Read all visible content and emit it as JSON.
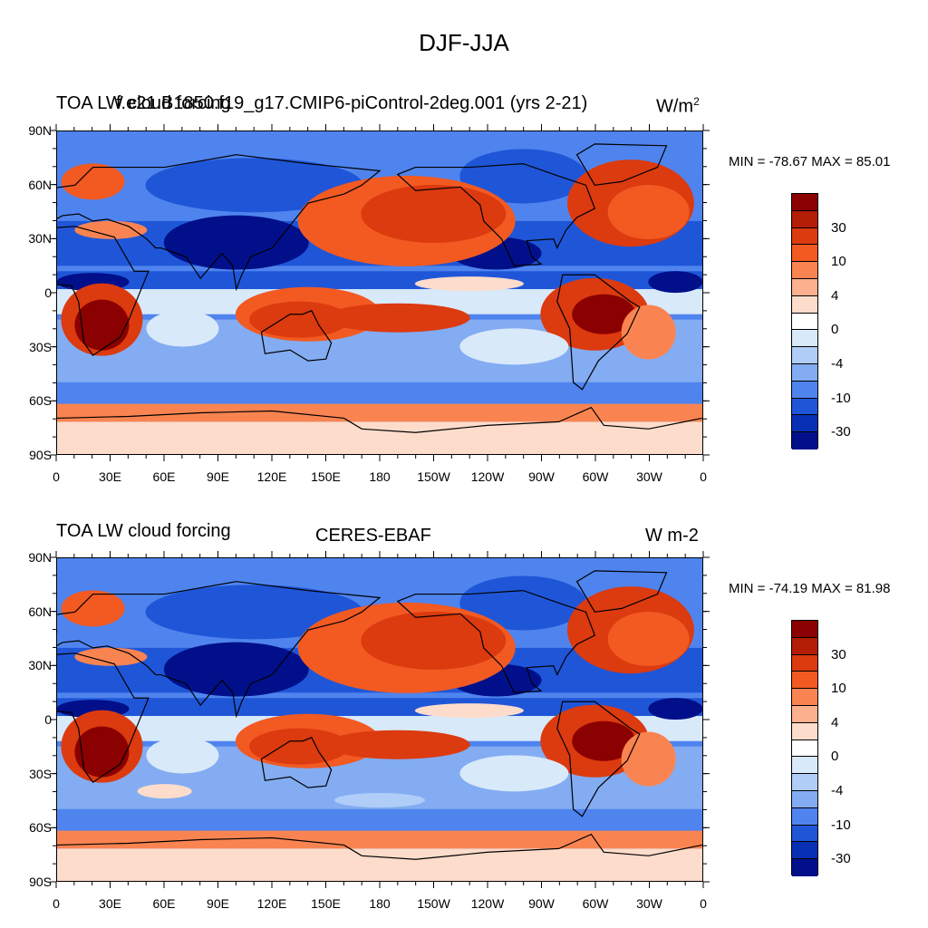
{
  "title": "DJF-JJA",
  "colorbar_colors": [
    "#8b0000",
    "#b31c05",
    "#dc3a0f",
    "#f25a22",
    "#fa8451",
    "#fdb08e",
    "#fddccb",
    "#ffffff",
    "#d8e9fa",
    "#afcdf7",
    "#83acf2",
    "#4f84ee",
    "#1f56d8",
    "#0830b5",
    "#01108a"
  ],
  "colorbar_labels": [
    "30",
    "10",
    "4",
    "0",
    "-4",
    "-10",
    "-30"
  ],
  "lat_labels": [
    "90N",
    "60N",
    "30N",
    "0",
    "30S",
    "60S",
    "90S"
  ],
  "lon_labels": [
    "0",
    "30E",
    "60E",
    "90E",
    "120E",
    "150E",
    "180",
    "150W",
    "120W",
    "90W",
    "60W",
    "30W",
    "0"
  ],
  "panels": [
    {
      "left_title": "TOA LW cloud forcing",
      "center_title": "f.e21.B1850.f19_g17.CMIP6-piControl-2deg.001 (yrs 2-21)",
      "units": "W/m",
      "units_sup": "2",
      "minmax": "MIN = -78.67 MAX =  85.01"
    },
    {
      "left_title": "TOA LW cloud forcing",
      "center_title": "CERES-EBAF",
      "units": "W m-2",
      "units_sup": "",
      "minmax": "MIN = -74.19 MAX =  81.98"
    }
  ]
}
